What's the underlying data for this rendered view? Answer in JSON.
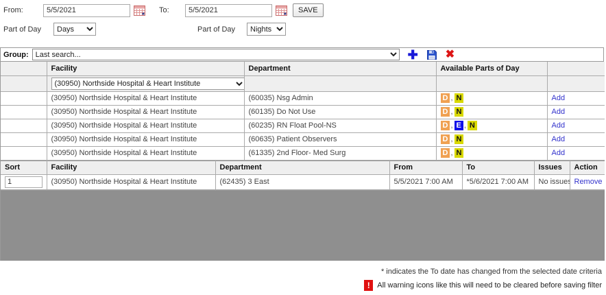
{
  "filters": {
    "from_label": "From:",
    "from_value": "5/5/2021",
    "to_label": "To:",
    "to_value": "5/5/2021",
    "save_label": "SAVE",
    "part_of_day_label": "Part of Day",
    "part_of_day_from_value": "Days",
    "part_of_day_to_value": "Nights"
  },
  "group": {
    "label": "Group:",
    "value": "Last search..."
  },
  "availability_table": {
    "headers": [
      "",
      "Facility",
      "Department",
      "Available Parts of Day",
      ""
    ],
    "filter_facility_value": "(30950) Northside Hospital & Heart Institute",
    "rows": [
      {
        "facility": "(30950) Northside Hospital & Heart Institute",
        "department": "(60035) Nsg Admin",
        "parts": [
          "D",
          "N"
        ],
        "action": "Add"
      },
      {
        "facility": "(30950) Northside Hospital & Heart Institute",
        "department": "(60135) Do Not Use",
        "parts": [
          "D",
          "N"
        ],
        "action": "Add"
      },
      {
        "facility": "(30950) Northside Hospital & Heart Institute",
        "department": "(60235) RN Float Pool-NS",
        "parts": [
          "D",
          "E",
          "N"
        ],
        "action": "Add"
      },
      {
        "facility": "(30950) Northside Hospital & Heart Institute",
        "department": "(60635) Patient Observers",
        "parts": [
          "D",
          "N"
        ],
        "action": "Add"
      },
      {
        "facility": "(30950) Northside Hospital & Heart Institute",
        "department": "(61335) 2nd Floor- Med Surg",
        "parts": [
          "D",
          "N"
        ],
        "action": "Add"
      }
    ]
  },
  "selected_table": {
    "headers": [
      "Sort",
      "Facility",
      "Department",
      "From",
      "To",
      "Issues",
      "Action"
    ],
    "rows": [
      {
        "sort": "1",
        "facility": "(30950) Northside Hospital & Heart Institute",
        "department": "(62435) 3 East",
        "from": "5/5/2021 7:00 AM",
        "to": "*5/6/2021 7:00 AM",
        "issues": "No issues",
        "action": "Remove"
      }
    ]
  },
  "footer": {
    "asterisk_note": "* indicates the To date has changed from the selected date criteria",
    "warning_note": "All warning icons like this will need to be cleared before saving filter",
    "warning_glyph": "!"
  },
  "colors": {
    "badge_D": "#f0a152",
    "badge_E": "#0f0fe8",
    "badge_N": "#d9d900",
    "link": "#3333cc",
    "warning": "#e01010",
    "gray_fill": "#8f8f8f"
  }
}
